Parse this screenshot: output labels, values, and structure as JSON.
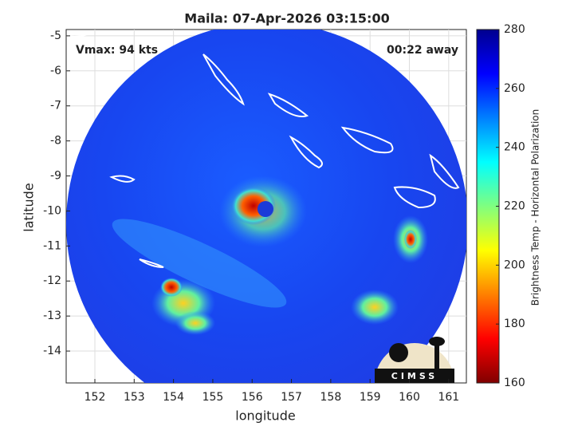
{
  "chart_data": {
    "type": "image",
    "title": "Maila: 07-Apr-2026 03:15:00",
    "annotations": [
      "Vmax: 94 kts",
      "00:22 away"
    ],
    "x_label": "longitude",
    "y_label": "latitude",
    "xlim": [
      151.27,
      161.45
    ],
    "xticks": [
      152,
      153,
      154,
      155,
      156,
      157,
      158,
      159,
      160,
      161
    ],
    "ylim": [
      -14.91,
      -4.82
    ],
    "yticks": [
      -14,
      -13,
      -12,
      -11,
      -10,
      -9,
      -8,
      -7,
      -6,
      -5
    ],
    "grid": true,
    "colorbar": {
      "label": "Brightness Temp - Horizontal Polarization",
      "colormap": "jet",
      "lim": [
        160,
        280
      ],
      "ticks": [
        160,
        180,
        200,
        220,
        240,
        260,
        280
      ]
    },
    "logo": "CIMSS"
  }
}
